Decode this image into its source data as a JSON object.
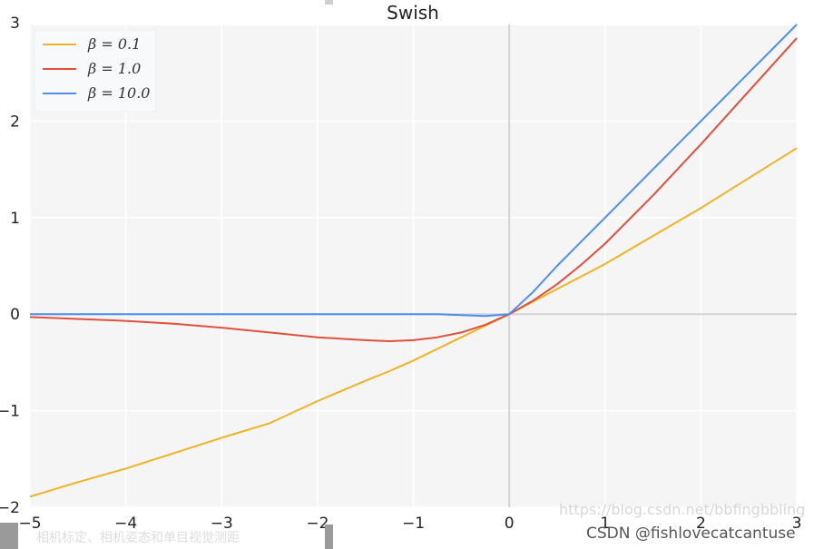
{
  "chart_data": {
    "type": "line",
    "title": "Swish",
    "xlim": [
      -5,
      3
    ],
    "ylim": [
      -2,
      3
    ],
    "xticks": [
      -5,
      -4,
      -3,
      -2,
      -1,
      0,
      1,
      2,
      3
    ],
    "yticks": [
      -2,
      -1,
      0,
      1,
      2,
      3
    ],
    "xtick_labels": [
      "−5",
      "−4",
      "−3",
      "−2",
      "−1",
      "0",
      "1",
      "2",
      "3"
    ],
    "ytick_labels": [
      "−2",
      "−1",
      "0",
      "1",
      "2",
      "3"
    ],
    "grid": true,
    "legend_position": "top-left",
    "x_samples": [
      -5,
      -4.5,
      -4,
      -3.5,
      -3,
      -2.5,
      -2,
      -1.5,
      -1.25,
      -1,
      -0.75,
      -0.5,
      -0.25,
      0,
      0.25,
      0.5,
      0.75,
      1,
      1.5,
      2,
      2.5,
      3
    ],
    "series": [
      {
        "name": "β = 0.1",
        "color": "#f0b323",
        "values": [
          -1.89,
          -1.74,
          -1.6,
          -1.44,
          -1.28,
          -1.13,
          -0.9,
          -0.69,
          -0.59,
          -0.48,
          -0.36,
          -0.24,
          -0.12,
          0,
          0.13,
          0.26,
          0.39,
          0.52,
          0.81,
          1.1,
          1.41,
          1.72
        ]
      },
      {
        "name": "β = 1.0",
        "color": "#e0503c",
        "values": [
          -0.03,
          -0.05,
          -0.07,
          -0.1,
          -0.14,
          -0.19,
          -0.24,
          -0.27,
          -0.28,
          -0.27,
          -0.24,
          -0.19,
          -0.11,
          0,
          0.14,
          0.31,
          0.51,
          0.73,
          1.23,
          1.76,
          2.31,
          2.86
        ]
      },
      {
        "name": "β = 10.0",
        "color": "#4c8ff0",
        "values": [
          0,
          0,
          0,
          0,
          0,
          0,
          0,
          0,
          0,
          0,
          0,
          -0.01,
          -0.02,
          0,
          0.23,
          0.5,
          0.75,
          1,
          1.5,
          2,
          2.5,
          3
        ]
      }
    ]
  },
  "watermarks": {
    "blog_url": "https://blog.csdn.net/bbfingbbling",
    "author": "CSDN @fishlovecatcantuse",
    "caption": "相机标定、相机姿态和单目视觉测距"
  }
}
